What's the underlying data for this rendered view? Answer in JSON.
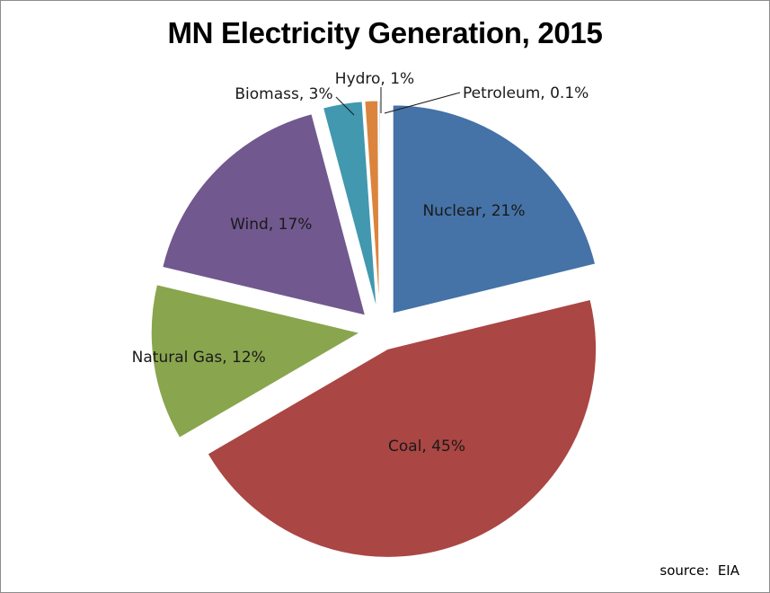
{
  "chart_data": {
    "type": "pie",
    "title": "MN Electricity Generation, 2015",
    "unit": "%",
    "slices": [
      {
        "name": "Nuclear",
        "value": 21,
        "label": "Nuclear, 21%",
        "color": "#4572a7"
      },
      {
        "name": "Coal",
        "value": 45,
        "label": "Coal, 45%",
        "color": "#aa4643"
      },
      {
        "name": "Natural Gas",
        "value": 12,
        "label": "Natural Gas, 12%",
        "color": "#89a54e"
      },
      {
        "name": "Wind",
        "value": 17,
        "label": "Wind, 17%",
        "color": "#71588f"
      },
      {
        "name": "Biomass",
        "value": 3,
        "label": "Biomass, 3%",
        "color": "#4198af"
      },
      {
        "name": "Hydro",
        "value": 1,
        "label": "Hydro, 1%",
        "color": "#db843d"
      },
      {
        "name": "Petroleum",
        "value": 0.1,
        "label": "Petroleum, 0.1%",
        "color": "#93a9cf"
      }
    ],
    "start_position": "12 o'clock, clockwise",
    "exploded": true
  },
  "source": "source:  EIA"
}
